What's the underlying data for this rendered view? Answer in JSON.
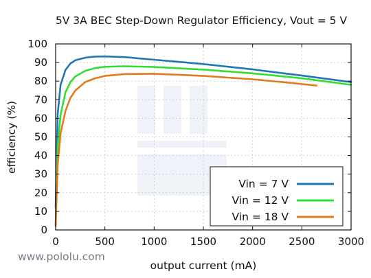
{
  "source_label": "www.pololu.com",
  "chart_data": {
    "type": "line",
    "title": "5V 3A BEC Step-Down Regulator Efficiency, Vout = 5 V",
    "xlabel": "output current (mA)",
    "ylabel": "efficiency (%)",
    "xlim": [
      0,
      3000
    ],
    "ylim": [
      0,
      100
    ],
    "xticks": [
      0,
      500,
      1000,
      1500,
      2000,
      2500,
      3000
    ],
    "yticks": [
      0,
      10,
      20,
      30,
      40,
      50,
      60,
      70,
      80,
      90,
      100
    ],
    "grid": true,
    "legend_position": "bottom-right",
    "series": [
      {
        "name": "Vin = 7 V",
        "color": "#1f77b4",
        "x": [
          0,
          20,
          50,
          100,
          150,
          200,
          300,
          400,
          500,
          700,
          1000,
          1500,
          2000,
          2500,
          3000
        ],
        "y": [
          12,
          62,
          78,
          86,
          89.5,
          91.2,
          92.6,
          93.2,
          93.3,
          92.9,
          91.5,
          89.2,
          86.3,
          83,
          79.5
        ]
      },
      {
        "name": "Vin = 12 V",
        "color": "#33dd33",
        "x": [
          0,
          20,
          50,
          100,
          150,
          200,
          300,
          400,
          500,
          700,
          1000,
          1500,
          2000,
          2500,
          3000
        ],
        "y": [
          3,
          45,
          62,
          74,
          79.5,
          82.5,
          85.5,
          87,
          87.7,
          88,
          87.6,
          86.2,
          84.2,
          81.5,
          78
        ]
      },
      {
        "name": "Vin = 18 V",
        "color": "#e07b20",
        "x": [
          0,
          20,
          50,
          100,
          150,
          200,
          300,
          400,
          500,
          700,
          1000,
          1500,
          2000,
          2400,
          2650
        ],
        "y": [
          2,
          35,
          52,
          64,
          71,
          75,
          79.5,
          81.5,
          82.8,
          83.8,
          84,
          82.8,
          81,
          79,
          77.6
        ]
      }
    ]
  }
}
